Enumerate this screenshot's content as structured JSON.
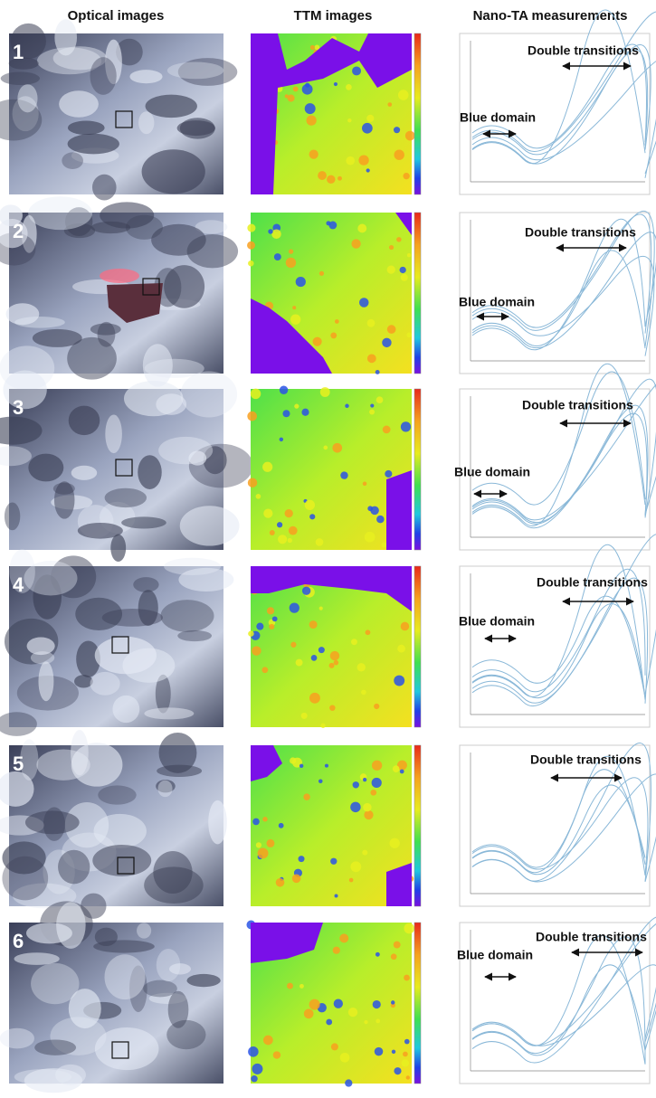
{
  "headers": [
    "Optical images",
    "TTM images",
    "Nano-TA measurements"
  ],
  "rows": [
    {
      "number": "1",
      "double_label": "Double transitions",
      "blue_label": "Blue domain"
    },
    {
      "number": "2",
      "double_label": "Double transitions",
      "blue_label": "Blue domain"
    },
    {
      "number": "3",
      "double_label": "Double transitions",
      "blue_label": "Blue domain"
    },
    {
      "number": "4",
      "double_label": "Double transitions",
      "blue_label": "Blue domain"
    },
    {
      "number": "5",
      "double_label": "Double transitions"
    },
    {
      "number": "6",
      "double_label": "Double transitions",
      "blue_label": "Blue domain"
    }
  ]
}
